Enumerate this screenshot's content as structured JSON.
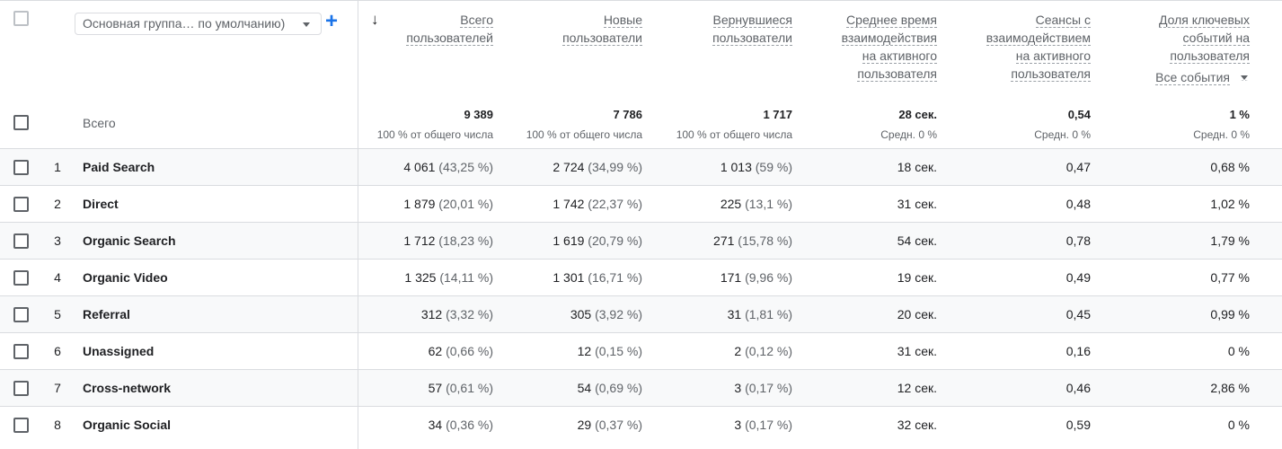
{
  "dimension_selector": {
    "label": "Основная группа… по умолчанию)"
  },
  "add_dimension_label": "+",
  "sort_icon": "arrow-down-icon",
  "columns": [
    {
      "title_lines": [
        "Всего",
        "пользователей"
      ],
      "total": "9 389",
      "total_sub": "100 % от общего числа"
    },
    {
      "title_lines": [
        "Новые",
        "пользователи"
      ],
      "total": "7 786",
      "total_sub": "100 % от общего числа"
    },
    {
      "title_lines": [
        "Вернувшиеся",
        "пользователи"
      ],
      "total": "1 717",
      "total_sub": "100 % от общего числа"
    },
    {
      "title_lines": [
        "Среднее время",
        "взаимодействия",
        "на активного",
        "пользователя"
      ],
      "total": "28 сек.",
      "total_sub": "Средн. 0 %"
    },
    {
      "title_lines": [
        "Сеансы с",
        "взаимодействием",
        "на активного",
        "пользователя"
      ],
      "total": "0,54",
      "total_sub": "Средн. 0 %"
    },
    {
      "title_lines": [
        "Доля ключевых",
        "событий на",
        "пользователя"
      ],
      "total": "1 %",
      "total_sub": "Средн. 0 %",
      "selector": "Все события"
    }
  ],
  "totals_label": "Всего",
  "rows": [
    {
      "index": "1",
      "name": "Paid Search",
      "cells": [
        [
          "4 061",
          "(43,25 %)"
        ],
        [
          "2 724",
          "(34,99 %)"
        ],
        [
          "1 013",
          "(59 %)"
        ],
        [
          "18 сек.",
          ""
        ],
        [
          "0,47",
          ""
        ],
        [
          "0,68 %",
          ""
        ]
      ]
    },
    {
      "index": "2",
      "name": "Direct",
      "cells": [
        [
          "1 879",
          "(20,01 %)"
        ],
        [
          "1 742",
          "(22,37 %)"
        ],
        [
          "225",
          "(13,1 %)"
        ],
        [
          "31 сек.",
          ""
        ],
        [
          "0,48",
          ""
        ],
        [
          "1,02 %",
          ""
        ]
      ]
    },
    {
      "index": "3",
      "name": "Organic Search",
      "cells": [
        [
          "1 712",
          "(18,23 %)"
        ],
        [
          "1 619",
          "(20,79 %)"
        ],
        [
          "271",
          "(15,78 %)"
        ],
        [
          "54 сек.",
          ""
        ],
        [
          "0,78",
          ""
        ],
        [
          "1,79 %",
          ""
        ]
      ]
    },
    {
      "index": "4",
      "name": "Organic Video",
      "cells": [
        [
          "1 325",
          "(14,11 %)"
        ],
        [
          "1 301",
          "(16,71 %)"
        ],
        [
          "171",
          "(9,96 %)"
        ],
        [
          "19 сек.",
          ""
        ],
        [
          "0,49",
          ""
        ],
        [
          "0,77 %",
          ""
        ]
      ]
    },
    {
      "index": "5",
      "name": "Referral",
      "cells": [
        [
          "312",
          "(3,32 %)"
        ],
        [
          "305",
          "(3,92 %)"
        ],
        [
          "31",
          "(1,81 %)"
        ],
        [
          "20 сек.",
          ""
        ],
        [
          "0,45",
          ""
        ],
        [
          "0,99 %",
          ""
        ]
      ]
    },
    {
      "index": "6",
      "name": "Unassigned",
      "cells": [
        [
          "62",
          "(0,66 %)"
        ],
        [
          "12",
          "(0,15 %)"
        ],
        [
          "2",
          "(0,12 %)"
        ],
        [
          "31 сек.",
          ""
        ],
        [
          "0,16",
          ""
        ],
        [
          "0 %",
          ""
        ]
      ]
    },
    {
      "index": "7",
      "name": "Cross-network",
      "cells": [
        [
          "57",
          "(0,61 %)"
        ],
        [
          "54",
          "(0,69 %)"
        ],
        [
          "3",
          "(0,17 %)"
        ],
        [
          "12 сек.",
          ""
        ],
        [
          "0,46",
          ""
        ],
        [
          "2,86 %",
          ""
        ]
      ]
    },
    {
      "index": "8",
      "name": "Organic Social",
      "cells": [
        [
          "34",
          "(0,36 %)"
        ],
        [
          "29",
          "(0,37 %)"
        ],
        [
          "3",
          "(0,17 %)"
        ],
        [
          "32 сек.",
          ""
        ],
        [
          "0,59",
          ""
        ],
        [
          "0 %",
          ""
        ]
      ]
    }
  ]
}
